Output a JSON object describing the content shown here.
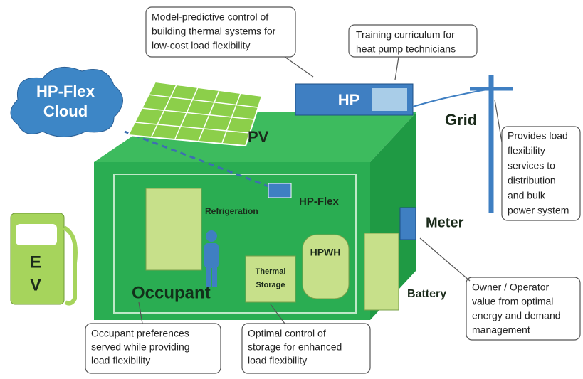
{
  "labels": {
    "cloud": [
      "HP-Flex",
      "Cloud"
    ],
    "pv": "PV",
    "hp": "HP",
    "grid": "Grid",
    "hp_flex": "HP-Flex",
    "refrigeration": "Refrigeration",
    "hpwh": "HPWH",
    "meter": "Meter",
    "thermal_storage": [
      "Thermal",
      "Storage"
    ],
    "occupant": "Occupant",
    "battery": "Battery",
    "ev": [
      "E",
      "V"
    ]
  },
  "callouts": [
    {
      "lines": [
        "Model-predictive control of",
        "building thermal systems for",
        "low-cost load flexibility"
      ]
    },
    {
      "lines": [
        "Training curriculum for",
        "heat pump technicians"
      ]
    },
    {
      "lines": [
        "Provides load",
        "flexibility",
        "services to",
        "distribution",
        "and bulk",
        "power system"
      ]
    },
    {
      "lines": [
        "Owner / Operator",
        "value from optimal",
        "energy and demand",
        "management"
      ]
    },
    {
      "lines": [
        "Occupant preferences",
        "served while providing",
        "load flexibility"
      ]
    },
    {
      "lines": [
        "Optimal control of",
        "storage for enhanced",
        "load flexibility"
      ]
    }
  ]
}
